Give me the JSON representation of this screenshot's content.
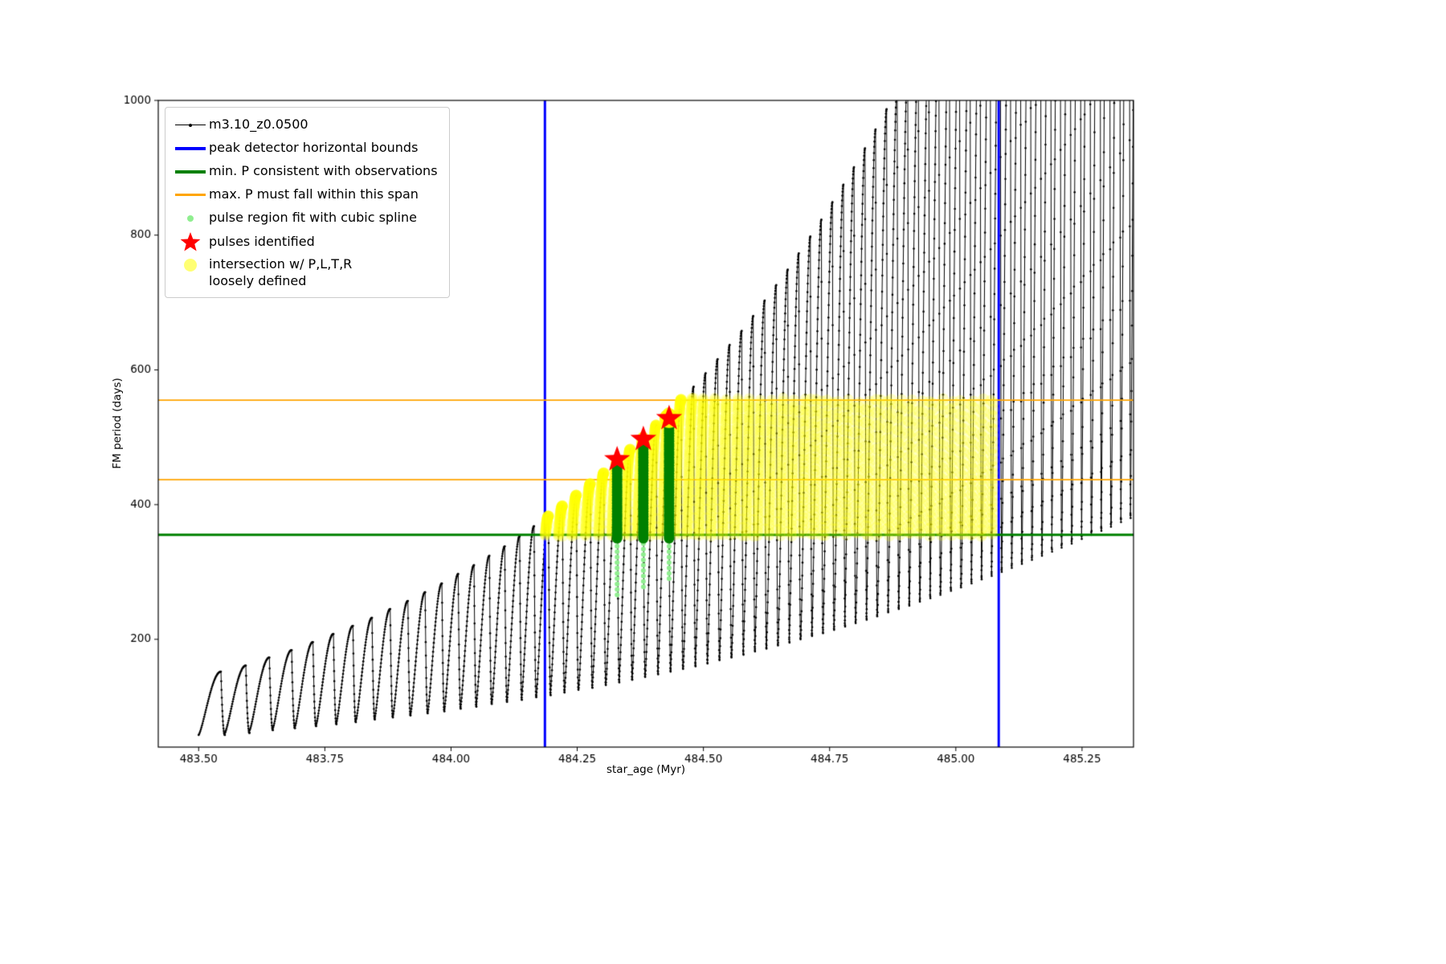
{
  "chart_data": {
    "type": "line",
    "title": "",
    "xlabel": "star_age (Myr)",
    "ylabel": "FM period (days)",
    "xlim": [
      483.42,
      485.352
    ],
    "ylim": [
      40,
      1000
    ],
    "grid": false,
    "legend_position": "upper left",
    "x_ticks": [
      "483.50",
      "483.75",
      "484.00",
      "484.25",
      "484.50",
      "484.75",
      "485.00",
      "485.25"
    ],
    "x_tick_values": [
      483.5,
      483.75,
      484.0,
      484.25,
      484.5,
      484.75,
      485.0,
      485.25
    ],
    "y_ticks": [
      "200",
      "400",
      "600",
      "800",
      "1000"
    ],
    "y_tick_values": [
      200,
      400,
      600,
      800,
      1000
    ],
    "legend": [
      {
        "label": "m3.10_z0.0500",
        "marker": "line-with-dot",
        "color": "#000000"
      },
      {
        "label": "peak detector horizontal bounds",
        "marker": "thick-line",
        "color": "#0000ff"
      },
      {
        "label": "min. P consistent with observations",
        "marker": "thick-line",
        "color": "#008000"
      },
      {
        "label": "max. P must fall within this span",
        "marker": "line",
        "color": "#ffa500"
      },
      {
        "label": "pulse region fit with cubic spline",
        "marker": "small-dot",
        "color": "#90ee90"
      },
      {
        "label": "pulses identified",
        "marker": "star",
        "color": "#ff0000"
      },
      {
        "label": "intersection w/ P,L,T,R\nloosely defined",
        "marker": "big-dot",
        "color": "rgba(255,255,0,0.5)"
      }
    ],
    "series": {
      "name": "m3.10_z0.0500",
      "color": "#000000",
      "comment": "sawtooth pulse cycles as [start_age, period, min_period_days, peak_period_days]; peaks above 1000 are clipped by the axes",
      "cycles": [
        [
          483.5,
          0.052,
          58,
          152
        ],
        [
          483.552,
          0.0488,
          61,
          161
        ],
        [
          483.601,
          0.0461,
          65,
          173
        ],
        [
          483.647,
          0.0439,
          68,
          184
        ],
        [
          483.691,
          0.0418,
          71,
          196
        ],
        [
          483.733,
          0.0401,
          74,
          208
        ],
        [
          483.773,
          0.0385,
          77,
          220
        ],
        [
          483.812,
          0.0371,
          81,
          232
        ],
        [
          483.849,
          0.0359,
          84,
          245
        ],
        [
          483.885,
          0.0348,
          87,
          257
        ],
        [
          483.92,
          0.0338,
          90,
          270
        ],
        [
          483.954,
          0.0329,
          93,
          283
        ],
        [
          483.987,
          0.0321,
          97,
          297
        ],
        [
          484.019,
          0.0313,
          100,
          310
        ],
        [
          484.05,
          0.0307,
          104,
          324
        ],
        [
          484.081,
          0.03,
          107,
          338
        ],
        [
          484.111,
          0.0294,
          110,
          353
        ],
        [
          484.14,
          0.0289,
          114,
          368
        ],
        [
          484.169,
          0.0284,
          117,
          383
        ],
        [
          484.197,
          0.0279,
          121,
          398
        ],
        [
          484.225,
          0.0275,
          125,
          414
        ],
        [
          484.253,
          0.0271,
          128,
          431
        ],
        [
          484.28,
          0.0267,
          132,
          447
        ],
        [
          484.307,
          0.0264,
          136,
          465
        ],
        [
          484.333,
          0.026,
          140,
          482
        ],
        [
          484.359,
          0.0256,
          144,
          500
        ],
        [
          484.385,
          0.0253,
          148,
          518
        ],
        [
          484.41,
          0.025,
          152,
          536
        ],
        [
          484.435,
          0.0247,
          156,
          556
        ],
        [
          484.46,
          0.0244,
          160,
          575
        ],
        [
          484.484,
          0.0241,
          164,
          595
        ],
        [
          484.508,
          0.0239,
          169,
          616
        ],
        [
          484.532,
          0.0236,
          173,
          637
        ],
        [
          484.556,
          0.0234,
          177,
          658
        ],
        [
          484.579,
          0.0232,
          182,
          680
        ],
        [
          484.602,
          0.0229,
          186,
          703
        ],
        [
          484.625,
          0.0227,
          191,
          726
        ],
        [
          484.648,
          0.0225,
          195,
          749
        ],
        [
          484.67,
          0.0224,
          200,
          773
        ],
        [
          484.693,
          0.0222,
          205,
          798
        ],
        [
          484.715,
          0.022,
          209,
          823
        ],
        [
          484.737,
          0.0219,
          214,
          849
        ],
        [
          484.759,
          0.0217,
          219,
          875
        ],
        [
          484.78,
          0.0216,
          224,
          901
        ],
        [
          484.802,
          0.0214,
          229,
          929
        ],
        [
          484.823,
          0.0213,
          234,
          957
        ],
        [
          484.845,
          0.0211,
          240,
          987
        ],
        [
          484.866,
          0.021,
          245,
          1017
        ],
        [
          484.887,
          0.0209,
          250,
          1047
        ],
        [
          484.908,
          0.0208,
          256,
          1078
        ],
        [
          484.929,
          0.0206,
          261,
          1110
        ],
        [
          484.949,
          0.0205,
          266,
          1141
        ],
        [
          484.97,
          0.0204,
          272,
          1175
        ],
        [
          484.99,
          0.0203,
          277,
          1207
        ],
        [
          485.011,
          0.0202,
          283,
          1243
        ],
        [
          485.031,
          0.0202,
          289,
          1276
        ],
        [
          485.051,
          0.0201,
          294,
          1311
        ],
        [
          485.071,
          0.02,
          300,
          1347
        ],
        [
          485.091,
          0.0199,
          306,
          1383
        ],
        [
          485.111,
          0.0199,
          312,
          1420
        ],
        [
          485.131,
          0.0198,
          318,
          1458
        ],
        [
          485.151,
          0.0197,
          324,
          1497
        ],
        [
          485.171,
          0.0197,
          330,
          1536
        ],
        [
          485.19,
          0.0196,
          336,
          1574
        ],
        [
          485.21,
          0.0196,
          342,
          1614
        ],
        [
          485.23,
          0.0195,
          349,
          1655
        ],
        [
          485.249,
          0.0195,
          355,
          1695
        ],
        [
          485.269,
          0.0194,
          361,
          1737
        ],
        [
          485.288,
          0.0194,
          367,
          1778
        ],
        [
          485.308,
          0.0193,
          374,
          1821
        ],
        [
          485.327,
          0.0193,
          380,
          1863
        ],
        [
          485.346,
          0.0192,
          387,
          1906
        ]
      ]
    },
    "overlays": {
      "bounds_color": "#0000ff",
      "bounds_x": [
        484.186,
        485.085
      ],
      "span_color": "#ffa500",
      "span_y": [
        555,
        437
      ],
      "min_color": "#008000",
      "min_y": 355,
      "intersect_color": "rgba(255,255,0,0.22)",
      "intersect_band": {
        "xmin": 484.17,
        "xmax": 485.088,
        "ymin": 353,
        "ymax": 558
      },
      "spline_color": "#90ee90",
      "spline_runs": [
        {
          "x": 484.329,
          "y0": 266,
          "y1": 348
        },
        {
          "x": 484.381,
          "y0": 278,
          "y1": 348
        },
        {
          "x": 484.432,
          "y0": 290,
          "y1": 348
        }
      ],
      "pulse_color": "#008000",
      "pulse_bars": [
        {
          "x": 484.329,
          "y0": 350,
          "y1": 462
        },
        {
          "x": 484.381,
          "y0": 350,
          "y1": 492
        },
        {
          "x": 484.432,
          "y0": 350,
          "y1": 524
        }
      ],
      "pulse_star_color": "#ff0000",
      "stars": [
        {
          "x": 484.329,
          "y": 467
        },
        {
          "x": 484.381,
          "y": 497
        },
        {
          "x": 484.432,
          "y": 528
        }
      ],
      "star_halo": {
        "x": 484.432,
        "y": 528
      }
    }
  }
}
